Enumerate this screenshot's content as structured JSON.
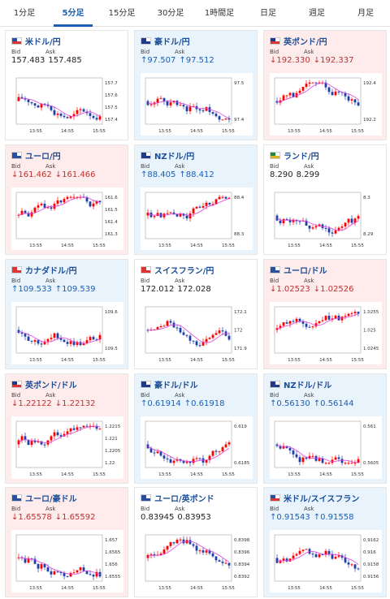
{
  "tabs": [
    {
      "label": "1分足",
      "active": false
    },
    {
      "label": "5分足",
      "active": true
    },
    {
      "label": "15分足",
      "active": false
    },
    {
      "label": "30分足",
      "active": false
    },
    {
      "label": "1時間足",
      "active": false
    },
    {
      "label": "日足",
      "active": false
    },
    {
      "label": "週足",
      "active": false
    },
    {
      "label": "月足",
      "active": false
    }
  ],
  "labels": {
    "bid": "Bid",
    "ask": "Ask"
  },
  "colors": {
    "up_bg": "#e8f3fc",
    "down_bg": "#fdeceb",
    "up_text": "#1a5fb4",
    "down_text": "#c03030",
    "candle_up": "#ff0000",
    "candle_down": "#1f3fa8",
    "ma": "#e040e0"
  },
  "cards": [
    {
      "pair": "米ドル/円",
      "flag": "us",
      "dir": "flat",
      "bid": "157.483",
      "ask": "157.485",
      "x_ticks": [
        "13:55",
        "14:55",
        "15:55"
      ],
      "y_ticks": [
        "157.7",
        "157.6",
        "157.5",
        "157.4"
      ]
    },
    {
      "pair": "豪ドル/円",
      "flag": "au",
      "dir": "up",
      "bid": "↑97.507",
      "ask": "↑97.512",
      "x_ticks": [
        "13:55",
        "14:55",
        "15:55"
      ],
      "y_ticks": [
        "97.5",
        "97.4"
      ]
    },
    {
      "pair": "英ポンド/円",
      "flag": "gb",
      "dir": "down",
      "bid": "↓192.330",
      "ask": "↓192.337",
      "x_ticks": [
        "13:55",
        "14:55",
        "15:55"
      ],
      "y_ticks": [
        "192.4",
        "192.2"
      ]
    },
    {
      "pair": "ユーロ/円",
      "flag": "eu",
      "dir": "down",
      "bid": "↓161.462",
      "ask": "↓161.466",
      "x_ticks": [
        "13:55",
        "14:55",
        "15:55"
      ],
      "y_ticks": [
        "161.6",
        "161.5",
        "161.4",
        "161.3"
      ]
    },
    {
      "pair": "NZドル/円",
      "flag": "nz",
      "dir": "up",
      "bid": "↑88.405",
      "ask": "↑88.412",
      "x_ticks": [
        "13:55",
        "14:55",
        "15:55"
      ],
      "y_ticks": [
        "88.4",
        "88.3"
      ]
    },
    {
      "pair": "ランド/円",
      "flag": "za",
      "dir": "flat",
      "bid": "8.290",
      "ask": "8.299",
      "x_ticks": [
        "13:55",
        "14:55",
        "15:55"
      ],
      "y_ticks": [
        "8.3",
        "8.29"
      ]
    },
    {
      "pair": "カナダドル/円",
      "flag": "ca",
      "dir": "up",
      "bid": "↑109.533",
      "ask": "↑109.539",
      "x_ticks": [
        "13:55",
        "14:55",
        "15:55"
      ],
      "y_ticks": [
        "109.6",
        "109.5"
      ]
    },
    {
      "pair": "スイスフラン/円",
      "flag": "ch",
      "dir": "flat",
      "bid": "172.012",
      "ask": "172.028",
      "x_ticks": [
        "13:55",
        "14:55",
        "15:55"
      ],
      "y_ticks": [
        "172.1",
        "172",
        "171.9"
      ]
    },
    {
      "pair": "ユーロ/ドル",
      "flag": "eu",
      "dir": "down",
      "bid": "↓1.02523",
      "ask": "↓1.02526",
      "x_ticks": [
        "13:55",
        "14:55",
        "15:55"
      ],
      "y_ticks": [
        "1.0255",
        "1.025",
        "1.0245"
      ]
    },
    {
      "pair": "英ポンド/ドル",
      "flag": "gb",
      "dir": "down",
      "bid": "↓1.22122",
      "ask": "↓1.22132",
      "x_ticks": [
        "13:55",
        "14:55",
        "15:55"
      ],
      "y_ticks": [
        "1.2215",
        "1.221",
        "1.2205",
        "1.22"
      ]
    },
    {
      "pair": "豪ドル/ドル",
      "flag": "au",
      "dir": "up",
      "bid": "↑0.61914",
      "ask": "↑0.61918",
      "x_ticks": [
        "13:55",
        "14:55",
        "15:55"
      ],
      "y_ticks": [
        "0.619",
        "0.6185"
      ]
    },
    {
      "pair": "NZドル/ドル",
      "flag": "nz",
      "dir": "up",
      "bid": "↑0.56130",
      "ask": "↑0.56144",
      "x_ticks": [
        "13:55",
        "14:55",
        "15:55"
      ],
      "y_ticks": [
        "0.561",
        "0.5605"
      ]
    },
    {
      "pair": "ユーロ/豪ドル",
      "flag": "eu",
      "dir": "down",
      "bid": "↓1.65578",
      "ask": "↓1.65592",
      "x_ticks": [
        "13:55",
        "14:55",
        "15:55"
      ],
      "y_ticks": [
        "1.657",
        "1.6565",
        "1.656",
        "1.6555"
      ]
    },
    {
      "pair": "ユーロ/英ポンド",
      "flag": "eu",
      "dir": "flat",
      "bid": "0.83945",
      "ask": "0.83953",
      "x_ticks": [
        "13:55",
        "14:55",
        "15:55"
      ],
      "y_ticks": [
        "0.8398",
        "0.8396",
        "0.8394",
        "0.8392"
      ]
    },
    {
      "pair": "米ドル/スイスフラン",
      "flag": "us",
      "dir": "up",
      "bid": "↑0.91543",
      "ask": "↑0.91558",
      "x_ticks": [
        "13:55",
        "14:55",
        "15:55"
      ],
      "y_ticks": [
        "0.9162",
        "0.916",
        "0.9158",
        "0.9156"
      ]
    }
  ]
}
